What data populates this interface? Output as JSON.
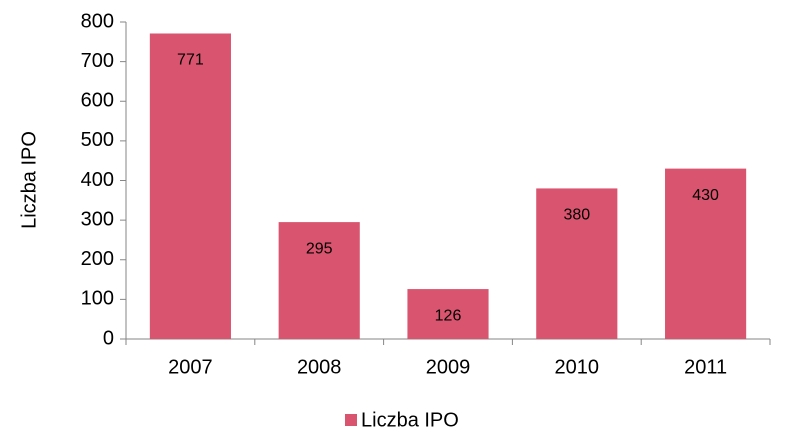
{
  "chart_data": {
    "type": "bar",
    "y_label": "Liczba IPO",
    "categories": [
      "2007",
      "2008",
      "2009",
      "2010",
      "2011"
    ],
    "series": [
      {
        "name": "Liczba IPO",
        "color": "#d9546e",
        "values": [
          771,
          295,
          126,
          380,
          430
        ]
      }
    ],
    "ylim": [
      0,
      800
    ],
    "yticks": [
      0,
      100,
      200,
      300,
      400,
      500,
      600,
      700,
      800
    ],
    "legend": "bottom"
  }
}
